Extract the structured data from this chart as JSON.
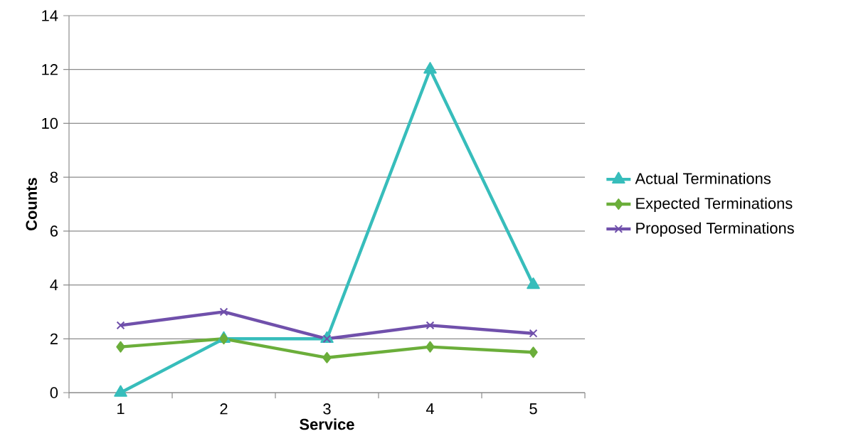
{
  "chart_data": {
    "type": "line",
    "xlabel": "Service",
    "ylabel": "Counts",
    "categories": [
      "1",
      "2",
      "3",
      "4",
      "5"
    ],
    "series": [
      {
        "name": "Actual Terminations",
        "color": "#37bdbb",
        "marker": "triangle",
        "values": [
          0,
          2,
          2,
          12,
          4
        ]
      },
      {
        "name": "Expected Terminations",
        "color": "#6bae3a",
        "marker": "diamond",
        "values": [
          1.7,
          2,
          1.3,
          1.7,
          1.5
        ]
      },
      {
        "name": "Proposed Terminations",
        "color": "#7050ab",
        "marker": "cross",
        "values": [
          2.5,
          3,
          2,
          2.5,
          2.2
        ]
      }
    ],
    "ylim": [
      0,
      14
    ],
    "yticks": [
      0,
      2,
      4,
      6,
      8,
      10,
      12,
      14
    ],
    "grid": "y",
    "legend": "right",
    "line_style": "solid"
  }
}
